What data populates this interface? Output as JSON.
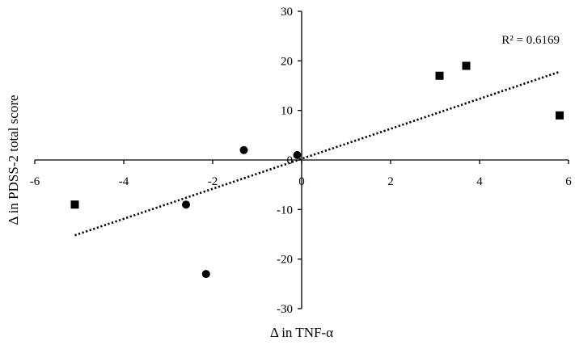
{
  "chart_data": {
    "type": "scatter",
    "title": "",
    "xlabel": "Δ in TNF-α",
    "ylabel": "Δ in PDSS-2 total score",
    "xlim": [
      -6,
      6
    ],
    "ylim": [
      -30,
      30
    ],
    "x_ticks": [
      -6,
      -4,
      -2,
      0,
      2,
      4,
      6
    ],
    "y_ticks": [
      -30,
      -20,
      -10,
      0,
      10,
      20,
      30
    ],
    "x_tick_labels": [
      "-6",
      "-4",
      "-2",
      "0",
      "2",
      "4",
      "6"
    ],
    "y_tick_labels": [
      "-30",
      "-20",
      "-10",
      "0",
      "10",
      "20",
      "30"
    ],
    "grid": false,
    "legend": "none",
    "series": [
      {
        "marker": "square",
        "color": "#000000",
        "points": [
          {
            "x": -5.1,
            "y": -9
          },
          {
            "x": 3.1,
            "y": 17
          },
          {
            "x": 3.7,
            "y": 19
          },
          {
            "x": 5.8,
            "y": 9
          }
        ]
      },
      {
        "marker": "circle",
        "color": "#000000",
        "points": [
          {
            "x": -2.6,
            "y": -9
          },
          {
            "x": -2.15,
            "y": -23
          },
          {
            "x": -1.3,
            "y": 2
          },
          {
            "x": -0.1,
            "y": 1
          }
        ]
      }
    ],
    "trendline": {
      "style": "dotted",
      "color": "#000000",
      "x_range": [
        -5.1,
        5.8
      ],
      "y_range": [
        -15.2,
        17.8
      ]
    },
    "annotations": [
      {
        "text": "R² = 0.6169",
        "x": 5.8,
        "y": 23.5
      }
    ]
  }
}
